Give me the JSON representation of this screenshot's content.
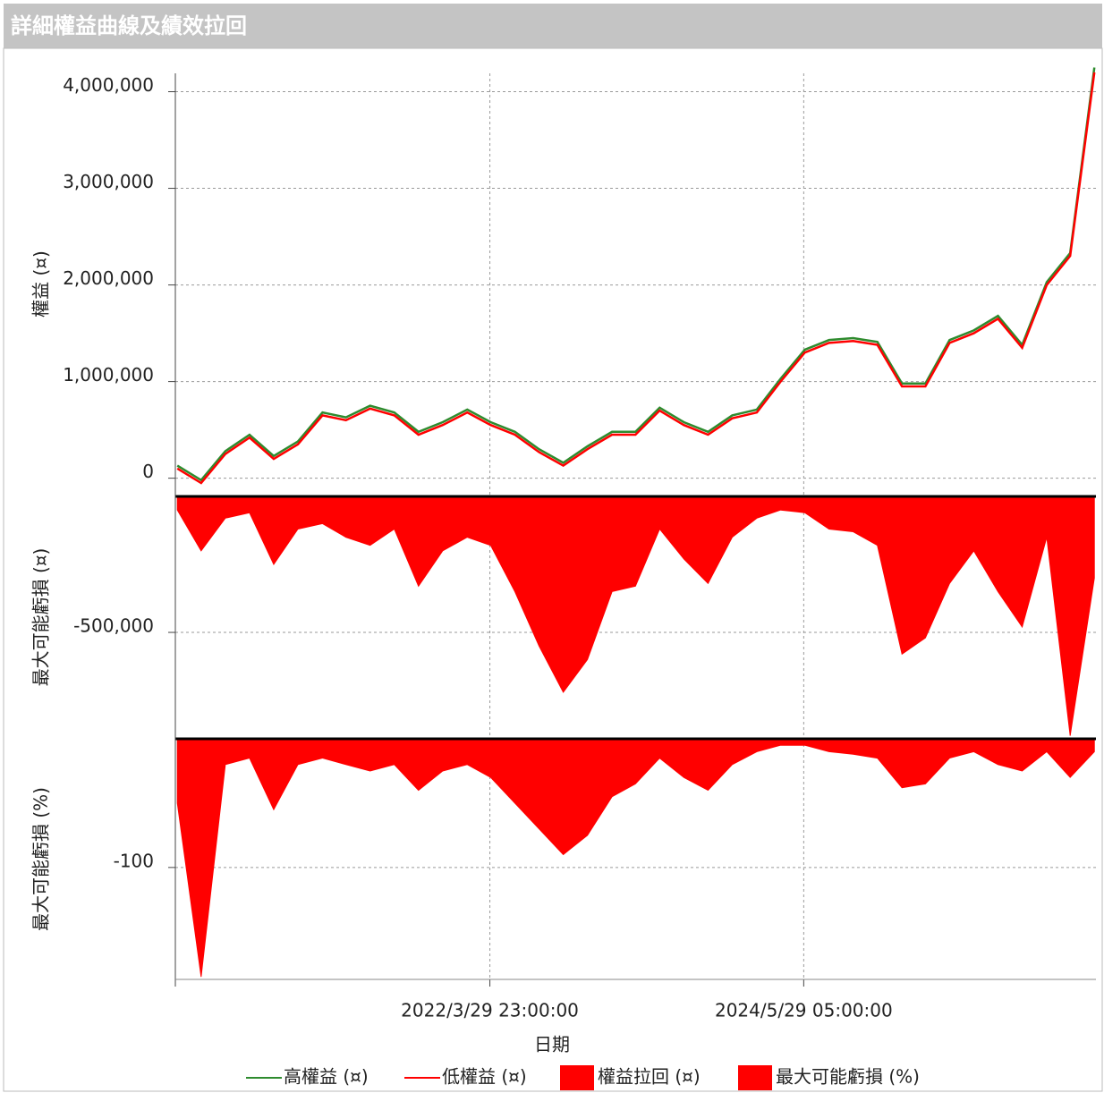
{
  "title": "詳細權益曲線及績效拉回",
  "xlabel": "日期",
  "chart_data": [
    {
      "type": "line",
      "ylabel": "權益 (¤)",
      "x": [
        "2020/2/1",
        "2020/4/1",
        "2020/6/1",
        "2020/8/1",
        "2020/10/1",
        "2020/12/1",
        "2021/2/1",
        "2021/4/1",
        "2021/6/1",
        "2021/8/1",
        "2021/10/1",
        "2021/12/1",
        "2022/2/1",
        "2022/4/1",
        "2022/6/1",
        "2022/8/1",
        "2022/10/1",
        "2022/12/1",
        "2023/2/1",
        "2023/4/1",
        "2023/6/1",
        "2023/8/1",
        "2023/10/1",
        "2023/12/1",
        "2024/2/1",
        "2024/4/1",
        "2024/6/1",
        "2024/8/1",
        "2024/10/1",
        "2024/12/1",
        "2025/2/1",
        "2025/4/1",
        "2025/6/1",
        "2025/8/1",
        "2025/10/1",
        "2025/12/1",
        "2026/2/1",
        "2026/4/1",
        "2026/6/1"
      ],
      "xlim": [
        "2020/1/27",
        "2026/6/5"
      ],
      "xticks": [
        "2022/3/29 23:00:00",
        "2024/5/29 05:00:00"
      ],
      "ylim": [
        -170000,
        4190000
      ],
      "yticks": [
        {
          "value": 0,
          "label": "0"
        },
        {
          "value": 1000000,
          "label": "1,000,000"
        },
        {
          "value": 2000000,
          "label": "2,000,000"
        },
        {
          "value": 3000000,
          "label": "3,000,000"
        },
        {
          "value": 4000000,
          "label": "4,000,000"
        }
      ],
      "grid": true,
      "series": [
        {
          "name": "高權益 (¤)",
          "color": "#2e8b2e",
          "values": [
            130000,
            -20000,
            280000,
            450000,
            230000,
            380000,
            680000,
            630000,
            750000,
            680000,
            480000,
            580000,
            710000,
            580000,
            480000,
            300000,
            160000,
            330000,
            480000,
            480000,
            730000,
            580000,
            480000,
            650000,
            710000,
            1030000,
            1330000,
            1430000,
            1450000,
            1410000,
            980000,
            980000,
            1430000,
            1530000,
            1680000,
            1380000,
            2030000,
            2330000,
            4250000
          ]
        },
        {
          "name": "低權益 (¤)",
          "color": "#ff0000",
          "values": [
            100000,
            -50000,
            250000,
            420000,
            200000,
            350000,
            650000,
            600000,
            720000,
            650000,
            450000,
            550000,
            680000,
            550000,
            450000,
            270000,
            130000,
            300000,
            450000,
            450000,
            700000,
            550000,
            450000,
            620000,
            680000,
            1000000,
            1300000,
            1400000,
            1420000,
            1380000,
            950000,
            950000,
            1400000,
            1500000,
            1650000,
            1350000,
            2000000,
            2300000,
            4200000
          ]
        }
      ]
    },
    {
      "type": "area",
      "ylabel": "最大可能虧損 (¤)",
      "x": [
        "2020/2/1",
        "2020/4/1",
        "2020/6/1",
        "2020/8/1",
        "2020/10/1",
        "2020/12/1",
        "2021/2/1",
        "2021/4/1",
        "2021/6/1",
        "2021/8/1",
        "2021/10/1",
        "2021/12/1",
        "2022/2/1",
        "2022/4/1",
        "2022/6/1",
        "2022/8/1",
        "2022/10/1",
        "2022/12/1",
        "2023/2/1",
        "2023/4/1",
        "2023/6/1",
        "2023/8/1",
        "2023/10/1",
        "2023/12/1",
        "2024/2/1",
        "2024/4/1",
        "2024/6/1",
        "2024/8/1",
        "2024/10/1",
        "2024/12/1",
        "2025/2/1",
        "2025/4/1",
        "2025/6/1",
        "2025/8/1",
        "2025/10/1",
        "2025/12/1",
        "2026/2/1",
        "2026/4/1",
        "2026/6/1"
      ],
      "xlim": [
        "2020/1/27",
        "2026/6/5"
      ],
      "xticks": [
        "2022/3/29 23:00:00",
        "2024/5/29 05:00:00"
      ],
      "ylim": [
        -888000,
        0
      ],
      "yticks": [
        {
          "value": -500000,
          "label": "-500,000"
        }
      ],
      "grid": true,
      "series": [
        {
          "name": "權益拉回 (¤)",
          "color": "#ff0000",
          "values": [
            -50000,
            -200000,
            -80000,
            -60000,
            -250000,
            -120000,
            -100000,
            -150000,
            -180000,
            -120000,
            -330000,
            -200000,
            -150000,
            -180000,
            -350000,
            -550000,
            -720000,
            -600000,
            -350000,
            -330000,
            -120000,
            -230000,
            -320000,
            -150000,
            -80000,
            -50000,
            -60000,
            -120000,
            -130000,
            -180000,
            -580000,
            -520000,
            -320000,
            -200000,
            -350000,
            -480000,
            -150000,
            -880000,
            -300000
          ]
        }
      ]
    },
    {
      "type": "area",
      "ylabel": "最大可能虧損 (%)",
      "x": [
        "2020/2/1",
        "2020/4/1",
        "2020/6/1",
        "2020/8/1",
        "2020/10/1",
        "2020/12/1",
        "2021/2/1",
        "2021/4/1",
        "2021/6/1",
        "2021/8/1",
        "2021/10/1",
        "2021/12/1",
        "2022/2/1",
        "2022/4/1",
        "2022/6/1",
        "2022/8/1",
        "2022/10/1",
        "2022/12/1",
        "2023/2/1",
        "2023/4/1",
        "2023/6/1",
        "2023/8/1",
        "2023/10/1",
        "2023/12/1",
        "2024/2/1",
        "2024/4/1",
        "2024/6/1",
        "2024/8/1",
        "2024/10/1",
        "2024/12/1",
        "2025/2/1",
        "2025/4/1",
        "2025/6/1",
        "2025/8/1",
        "2025/10/1",
        "2025/12/1",
        "2026/2/1",
        "2026/4/1",
        "2026/6/1"
      ],
      "xlim": [
        "2020/1/27",
        "2026/6/5"
      ],
      "xticks": [
        "2022/3/29 23:00:00",
        "2024/5/29 05:00:00"
      ],
      "ylim": [
        -187,
        0
      ],
      "yticks": [
        -100
      ],
      "grid": true,
      "series": [
        {
          "name": "最大可能虧損 (%)",
          "color": "#ff0000",
          "values": [
            -50,
            -185,
            -20,
            -15,
            -55,
            -20,
            -15,
            -20,
            -25,
            -20,
            -40,
            -25,
            -20,
            -30,
            -50,
            -70,
            -90,
            -75,
            -45,
            -35,
            -15,
            -30,
            -40,
            -20,
            -10,
            -5,
            -5,
            -10,
            -12,
            -15,
            -38,
            -35,
            -15,
            -10,
            -20,
            -25,
            -10,
            -30,
            -10
          ]
        }
      ]
    }
  ]
}
